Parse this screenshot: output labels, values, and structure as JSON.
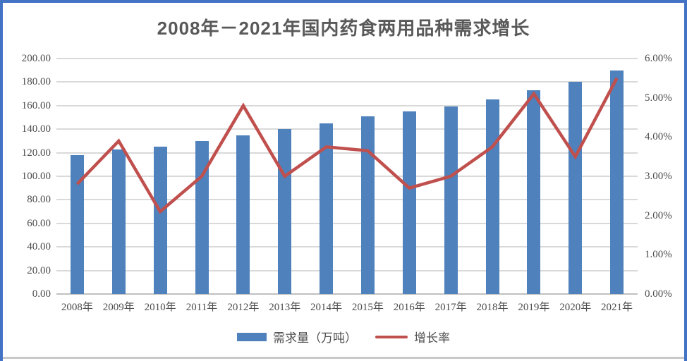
{
  "window": {
    "border_color": "#4472C4"
  },
  "chart_data": {
    "type": "bar+line",
    "title": "2008年－2021年国内药食两用品种需求增长",
    "title_color": "#595959",
    "categories": [
      "2008年",
      "2009年",
      "2010年",
      "2011年",
      "2012年",
      "2013年",
      "2014年",
      "2015年",
      "2016年",
      "2017年",
      "2018年",
      "2019年",
      "2020年",
      "2021年"
    ],
    "series": [
      {
        "name": "需求量（万吨）",
        "type": "bar",
        "axis": "left",
        "color": "#4F81BD",
        "values": [
          118,
          123,
          125,
          130,
          135,
          140,
          145,
          151,
          155,
          159,
          165,
          173,
          180,
          190
        ]
      },
      {
        "name": "增长率",
        "type": "line",
        "axis": "right",
        "color": "#C0504D",
        "values": [
          2.8,
          3.9,
          2.1,
          3.0,
          4.8,
          3.0,
          3.75,
          3.65,
          2.7,
          3.0,
          3.75,
          5.1,
          3.5,
          5.5
        ]
      }
    ],
    "left_axis": {
      "min": 0,
      "max": 200,
      "step": 20,
      "tick_labels_top_to_bottom": [
        "200.00",
        "180.00",
        "160.00",
        "140.00",
        "120.00",
        "100.00",
        "80.00",
        "60.00",
        "40.00",
        "20.00",
        "0.00"
      ]
    },
    "right_axis": {
      "min": 0,
      "max": 6,
      "step": 1,
      "tick_labels_top_to_bottom": [
        "6.00%",
        "5.00%",
        "4.00%",
        "3.00%",
        "2.00%",
        "1.00%",
        "0.00%"
      ]
    },
    "grid": true,
    "gridline_color": "#D9D9D9",
    "legend_position": "bottom"
  }
}
